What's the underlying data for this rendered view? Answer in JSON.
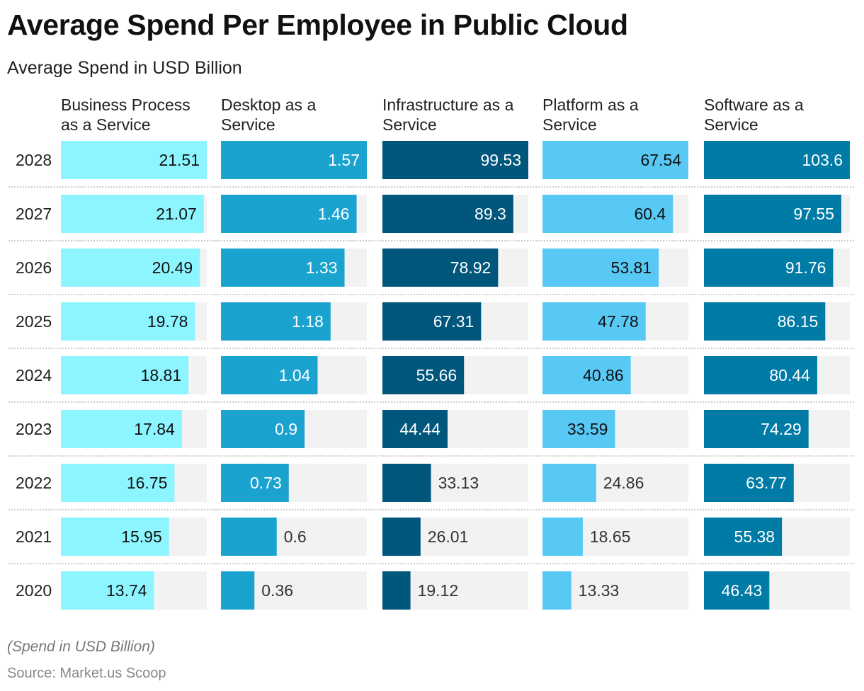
{
  "chart_data": {
    "type": "bar",
    "title": "Average Spend Per Employee in Public Cloud",
    "subtitle": "Average Spend in USD Billion",
    "categories": [
      "2028",
      "2027",
      "2026",
      "2025",
      "2024",
      "2023",
      "2022",
      "2021",
      "2020"
    ],
    "series": [
      {
        "name": "Business Process as a Service",
        "name_lines": [
          "Business Process",
          "as a Service"
        ],
        "color": "#8cf5ff",
        "label_color": "#111111",
        "values": [
          21.51,
          21.07,
          20.49,
          19.78,
          18.81,
          17.84,
          16.75,
          15.95,
          13.74
        ]
      },
      {
        "name": "Desktop as a Service",
        "name_lines": [
          "Desktop as a",
          "Service"
        ],
        "color": "#1ba3d0",
        "label_color": "#ffffff",
        "values": [
          1.57,
          1.46,
          1.33,
          1.18,
          1.04,
          0.9,
          0.73,
          0.6,
          0.36
        ]
      },
      {
        "name": "Infrastructure as a Service",
        "name_lines": [
          "Infrastructure as a",
          "Service"
        ],
        "color": "#00567b",
        "label_color": "#ffffff",
        "values": [
          99.53,
          89.3,
          78.92,
          67.31,
          55.66,
          44.44,
          33.13,
          26.01,
          19.12
        ]
      },
      {
        "name": "Platform as a Service",
        "name_lines": [
          "Platform as a",
          "Service"
        ],
        "color": "#58c8f5",
        "label_color": "#111111",
        "values": [
          67.54,
          60.4,
          53.81,
          47.78,
          40.86,
          33.59,
          24.86,
          18.65,
          13.33
        ]
      },
      {
        "name": "Software as a Service",
        "name_lines": [
          "Software as a",
          "Service"
        ],
        "color": "#007ba6",
        "label_color": "#ffffff",
        "values": [
          103.6,
          97.55,
          91.76,
          86.15,
          80.44,
          74.29,
          63.77,
          55.38,
          46.43
        ]
      }
    ],
    "background_track_color": "#f2f2f2",
    "scale": "each column scaled to its own maximum"
  },
  "footer": {
    "note": "(Spend in USD Billion)",
    "source": "Source: Market.us Scoop"
  }
}
